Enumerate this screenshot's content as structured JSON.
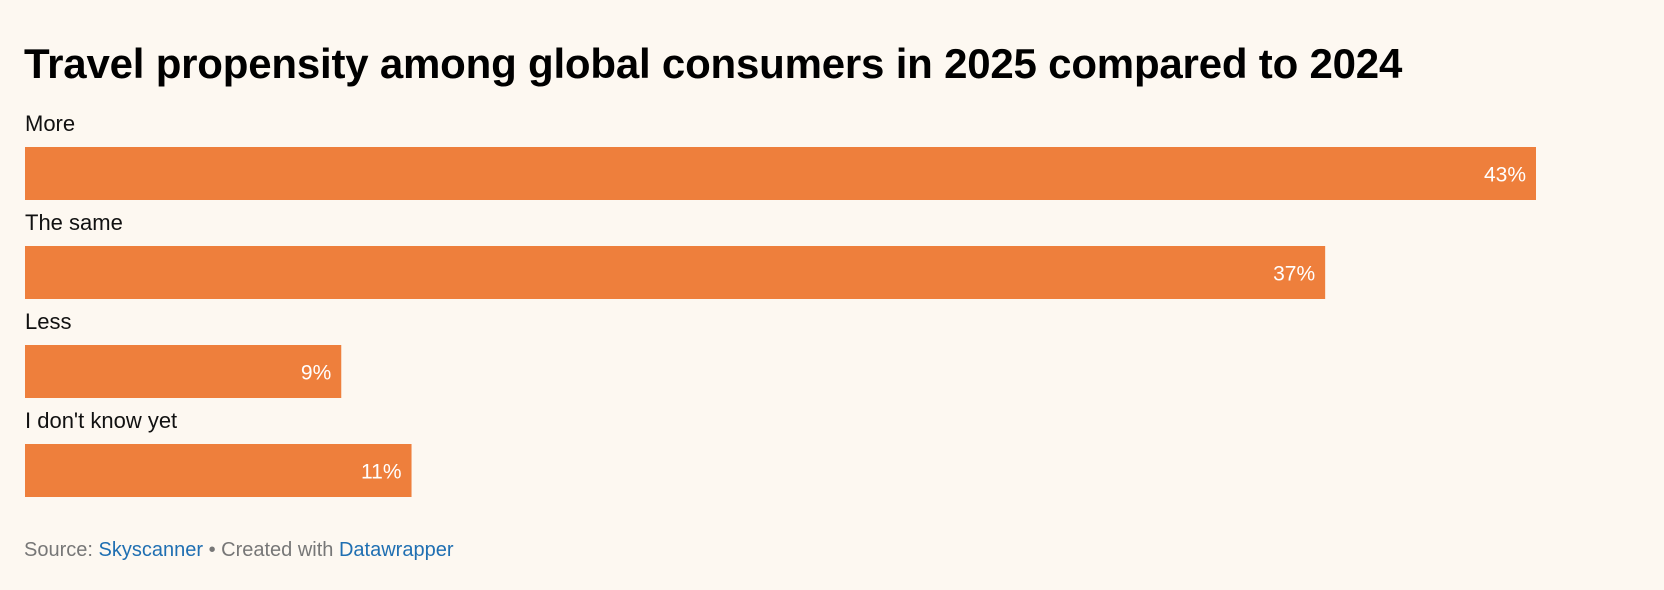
{
  "chart_data": {
    "type": "bar",
    "orientation": "horizontal",
    "title": "Travel propensity among global consumers in 2025 compared to 2024",
    "categories": [
      "More",
      "The same",
      "Less",
      "I don't know yet"
    ],
    "values": [
      43,
      37,
      9,
      11
    ],
    "value_labels": [
      "43%",
      "37%",
      "9%",
      "11%"
    ],
    "unit": "%",
    "xlim": [
      0,
      43
    ],
    "grid": false,
    "legend": "none",
    "bar_color": "#ee7f3c"
  },
  "footer": {
    "source_prefix": "Source:",
    "source_name": "Skyscanner",
    "separator": "•",
    "created_prefix": "Created with",
    "created_tool": "Datawrapper"
  },
  "colors": {
    "background": "#fdf8f1",
    "bar": "#ee7f3c",
    "link": "#1f6fb2"
  }
}
